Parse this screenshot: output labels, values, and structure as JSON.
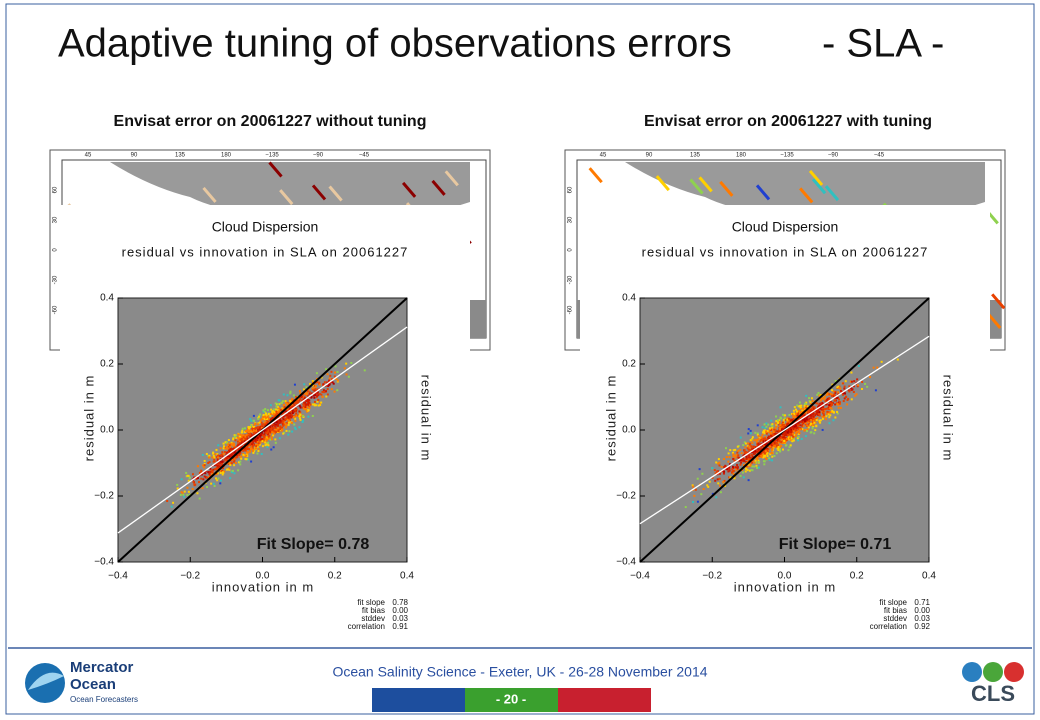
{
  "header": {
    "title": "Adaptive tuning of observations errors",
    "suffix": "- SLA -"
  },
  "panels": [
    {
      "map_title": "Envisat error on 20061227 without tuning",
      "plot_title": "Cloud Dispersion",
      "plot_subtitle": "residual vs innovation in SLA on 20061227",
      "x_label": "innovation in m",
      "y_label": "residual in m",
      "fit_label": "Fit Slope= 0.78",
      "stats": [
        [
          "fit slope",
          "0.78"
        ],
        [
          "fit bias",
          "0.00"
        ],
        [
          "stddev",
          "0.03"
        ],
        [
          "correlation",
          "0.91"
        ]
      ]
    },
    {
      "map_title": "Envisat error on 20061227 with tuning",
      "plot_title": "Cloud Dispersion",
      "plot_subtitle": "residual vs innovation in SLA on 20061227",
      "x_label": "innovation in m",
      "y_label": "residual in m",
      "fit_label": "Fit Slope= 0.71",
      "stats": [
        [
          "fit slope",
          "0.71"
        ],
        [
          "fit bias",
          "0.00"
        ],
        [
          "stddev",
          "0.03"
        ],
        [
          "correlation",
          "0.92"
        ]
      ]
    }
  ],
  "plot_xticks": [
    "−0.4",
    "−0.2",
    "0.0",
    "0.2",
    "0.4"
  ],
  "plot_yticks": [
    "0.4",
    "0.2",
    "0.0",
    "−0.2",
    "−0.4"
  ],
  "map_lon_ticks": [
    "45",
    "90",
    "135",
    "180",
    "−135",
    "−90",
    "−45"
  ],
  "map_lat_ticks": [
    "60",
    "30",
    "0",
    "-30",
    "-60"
  ],
  "footer": {
    "text": "Ocean Salinity Science - Exeter, UK - 26-28 November 2014",
    "page": "- 20 -",
    "logo_left": [
      "Mercator",
      "Ocean",
      "Ocean Forecasters"
    ],
    "logo_right": "CLS"
  }
}
